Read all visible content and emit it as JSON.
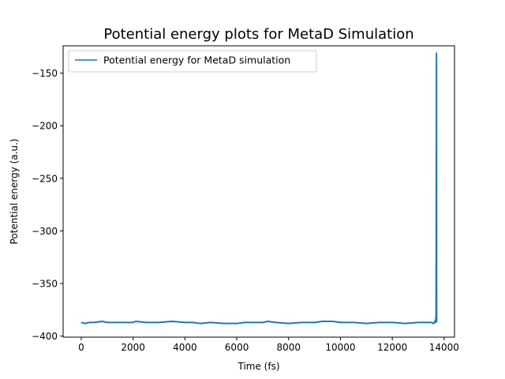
{
  "chart_data": {
    "type": "line",
    "title": "Potential energy plots for MetaD Simulation",
    "xlabel": "Time (fs)",
    "ylabel": "Potential energy (a.u.)",
    "xlim": [
      -700,
      14400
    ],
    "ylim": [
      -401,
      -124
    ],
    "xticks": [
      0,
      2000,
      4000,
      6000,
      8000,
      10000,
      12000,
      14000
    ],
    "xtick_labels": [
      "0",
      "2000",
      "4000",
      "6000",
      "8000",
      "10000",
      "12000",
      "14000"
    ],
    "yticks": [
      -400,
      -350,
      -300,
      -250,
      -200,
      -150
    ],
    "ytick_labels": [
      "−400",
      "−350",
      "−300",
      "−250",
      "−200",
      "−150"
    ],
    "grid": false,
    "legend_position": "upper-left",
    "series": [
      {
        "name": "Potential energy for MetaD simulation",
        "color": "#1f77b4",
        "x": [
          0,
          150,
          300,
          500,
          800,
          1000,
          1500,
          2000,
          2100,
          2500,
          3000,
          3500,
          4000,
          4300,
          4600,
          5000,
          5500,
          6000,
          6300,
          6500,
          7000,
          7200,
          7500,
          8000,
          8500,
          9000,
          9300,
          9700,
          10000,
          10500,
          11000,
          11500,
          12000,
          12500,
          13000,
          13300,
          13500,
          13600,
          13640,
          13660,
          13670,
          13680,
          13690,
          13700,
          13705,
          13710
        ],
        "y": [
          -387,
          -388,
          -387,
          -387,
          -386,
          -387,
          -387,
          -387,
          -386,
          -387,
          -387,
          -386,
          -387,
          -387,
          -388,
          -387,
          -388,
          -388,
          -387,
          -387,
          -387,
          -386,
          -387,
          -388,
          -387,
          -387,
          -386,
          -386,
          -387,
          -387,
          -388,
          -387,
          -387,
          -388,
          -387,
          -387,
          -387,
          -388,
          -386,
          -387,
          -386,
          -384,
          -380,
          -240,
          -131,
          -387
        ]
      }
    ]
  }
}
